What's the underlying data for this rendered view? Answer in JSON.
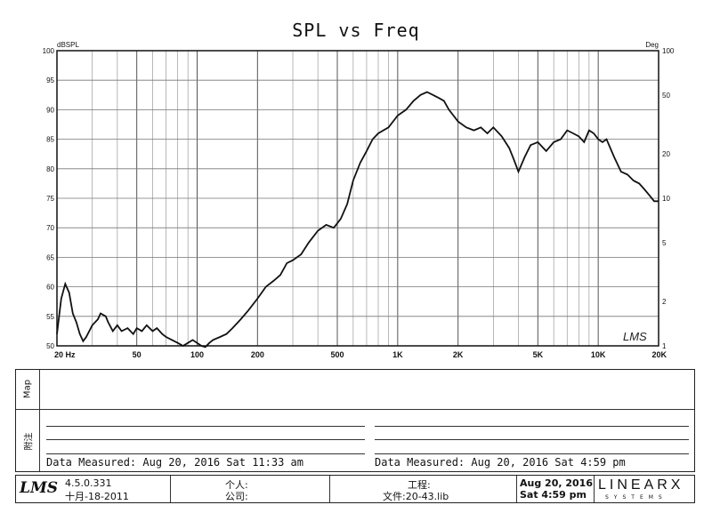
{
  "chart_data": {
    "type": "line",
    "title": "SPL vs Freq",
    "y_left_unit": "dBSPL",
    "y_right_unit": "Deg",
    "ylim": [
      50,
      100
    ],
    "y_ticks": [
      50,
      55,
      60,
      65,
      70,
      75,
      80,
      85,
      90,
      95,
      100
    ],
    "x_scale": "log",
    "xlim": [
      20,
      20000
    ],
    "x_ticks": [
      20,
      50,
      100,
      200,
      500,
      1000,
      2000,
      5000,
      10000,
      20000
    ],
    "x_tick_labels": [
      "20 Hz",
      "50",
      "100",
      "200",
      "500",
      "1K",
      "2K",
      "5K",
      "10K",
      "20K"
    ],
    "y_right_scale": "log",
    "y_right_ticks": [
      1,
      2,
      5,
      10,
      20,
      50,
      100
    ],
    "y_right_tick_labels": [
      "1",
      "2",
      "5",
      "10",
      "20",
      "50",
      "100"
    ],
    "grid": true,
    "series": [
      {
        "x": [
          20,
          21,
          22,
          23,
          24,
          25,
          26,
          27,
          28,
          30,
          32,
          33,
          35,
          36,
          38,
          40,
          42,
          45,
          48,
          50,
          53,
          56,
          60,
          63,
          67,
          70,
          75,
          80,
          85,
          90,
          95,
          100,
          105,
          110,
          115,
          120,
          130,
          140,
          150,
          165,
          180,
          200,
          220,
          240,
          260,
          280,
          300,
          330,
          360,
          400,
          440,
          480,
          520,
          560,
          600,
          650,
          700,
          750,
          800,
          900,
          1000,
          1100,
          1200,
          1300,
          1400,
          1500,
          1600,
          1700,
          1800,
          2000,
          2200,
          2400,
          2600,
          2800,
          3000,
          3300,
          3600,
          3800,
          4000,
          4300,
          4600,
          5000,
          5500,
          6000,
          6500,
          7000,
          7500,
          8000,
          8500,
          9000,
          9500,
          10000,
          10500,
          11000,
          12000,
          13000,
          14000,
          15000,
          16000,
          17000,
          18000,
          19000,
          20000
        ],
        "values": [
          52.0,
          58.0,
          60.5,
          59.0,
          55.5,
          54.0,
          52.0,
          50.8,
          51.5,
          53.5,
          54.5,
          55.5,
          55.0,
          54.0,
          52.5,
          53.5,
          52.5,
          53.0,
          52.0,
          53.0,
          52.5,
          53.5,
          52.5,
          53.0,
          52.0,
          51.5,
          51.0,
          50.5,
          50.0,
          50.5,
          51.0,
          50.5,
          50.0,
          49.8,
          50.5,
          51.0,
          51.5,
          52.0,
          53.0,
          54.5,
          56.0,
          58.0,
          60.0,
          61.0,
          62.0,
          64.0,
          64.5,
          65.5,
          67.5,
          69.5,
          70.5,
          70.0,
          71.5,
          74.0,
          78.0,
          81.0,
          83.0,
          85.0,
          86.0,
          87.0,
          89.0,
          90.0,
          91.5,
          92.5,
          93.0,
          92.5,
          92.0,
          91.5,
          90.0,
          88.0,
          87.0,
          86.5,
          87.0,
          86.0,
          87.0,
          85.5,
          83.5,
          81.5,
          79.5,
          82.0,
          84.0,
          84.5,
          83.0,
          84.5,
          85.0,
          86.5,
          86.0,
          85.5,
          84.5,
          86.5,
          86.0,
          85.0,
          84.5,
          85.0,
          82.0,
          79.5,
          79.0,
          78.0,
          77.5,
          76.5,
          75.5,
          74.5,
          74.5
        ]
      }
    ],
    "annotation": "LMS"
  },
  "remarks": {
    "map_label": "Map",
    "notes_label": "附注",
    "measured_left": "Data Measured: Aug 20, 2016  Sat 11:33 am",
    "measured_right": "Data Measured: Aug 20, 2016  Sat  4:59 pm"
  },
  "footer": {
    "logo": "LMS",
    "version": "4.5.0.331",
    "version_date": "十月-18-2011",
    "person_label": "个人:",
    "company_label": "公司:",
    "project_label": "工程:",
    "file_label": "文件:20-43.lib",
    "date_line": "Aug 20, 2016",
    "time_line": "Sat 4:59 pm",
    "brand": "LINEARX",
    "brand_sub": "SYSTEMS"
  }
}
